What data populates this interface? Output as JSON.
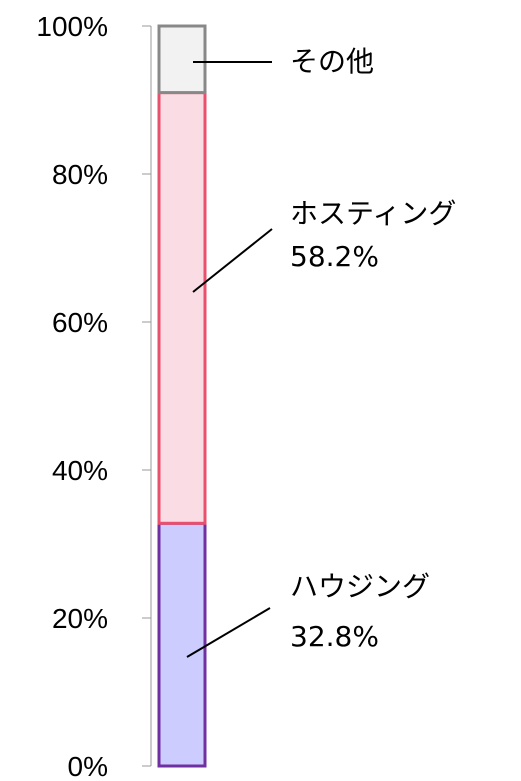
{
  "chart_data": {
    "type": "bar",
    "stacked": true,
    "y_ticks": [
      "0%",
      "20%",
      "40%",
      "60%",
      "80%",
      "100%"
    ],
    "ylim": [
      0,
      100
    ],
    "series": [
      {
        "name": "ハウジング",
        "value": 32.8,
        "value_label": "32.8%",
        "fill": "#ccccff",
        "stroke": "#7030a0"
      },
      {
        "name": "ホスティング",
        "value": 58.2,
        "value_label": "58.2%",
        "fill": "#fadce4",
        "stroke": "#e8506e"
      },
      {
        "name": "その他",
        "value": 9.0,
        "value_label": "",
        "fill": "#f2f2f2",
        "stroke": "#888888"
      }
    ],
    "axis_color": "#999999"
  }
}
